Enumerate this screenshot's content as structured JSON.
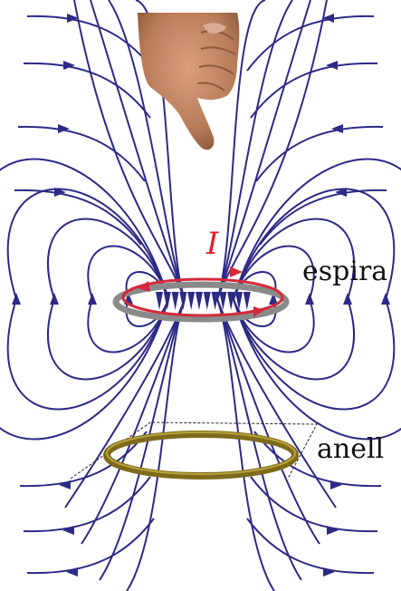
{
  "labels": {
    "current": "I",
    "loop": "espira",
    "ring": "anell"
  },
  "colors": {
    "field_line": "#2d2a86",
    "loop": "#d42a3a",
    "loop_shadow": "#8a8a8a",
    "ring": "#7d6a1c",
    "ring_highlight": "#b8a23a",
    "current_label": "#e0202a",
    "text": "#111111",
    "skin": "#c98d6a"
  },
  "icons": {
    "hand": "thumb-down-hand-icon"
  }
}
